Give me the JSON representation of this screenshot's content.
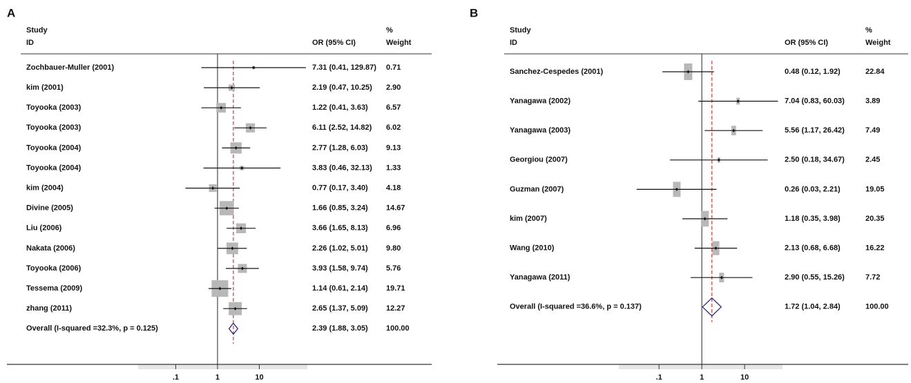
{
  "chart_data": [
    {
      "type": "forest",
      "panel_label": "A",
      "headers": {
        "study": "Study",
        "id": "ID",
        "or": "OR (95% CI)",
        "pct": "%",
        "weight": "Weight"
      },
      "categories": [
        "Zochbauer-Muller (2001)",
        "kim (2001)",
        "Toyooka (2003)",
        "Toyooka (2003)",
        "Toyooka (2004)",
        "Toyooka (2004)",
        "kim (2004)",
        "Divine (2005)",
        "Liu (2006)",
        "Nakata (2006)",
        "Toyooka (2006)",
        "Tessema (2009)",
        "zhang (2011)"
      ],
      "values": [
        7.31,
        2.19,
        1.22,
        6.11,
        2.77,
        3.83,
        0.77,
        1.66,
        3.66,
        2.26,
        3.93,
        1.14,
        2.65
      ],
      "lower": [
        0.41,
        0.47,
        0.41,
        2.52,
        1.28,
        0.46,
        0.17,
        0.85,
        1.65,
        1.02,
        1.58,
        0.61,
        1.37
      ],
      "upper": [
        129.87,
        10.25,
        3.63,
        14.82,
        6.03,
        32.13,
        3.4,
        3.24,
        8.13,
        5.01,
        9.74,
        2.14,
        5.09
      ],
      "value_labels": [
        "7.31 (0.41, 129.87)",
        "2.19 (0.47, 10.25)",
        "1.22 (0.41, 3.63)",
        "6.11 (2.52, 14.82)",
        "2.77 (1.28, 6.03)",
        "3.83 (0.46, 32.13)",
        "0.77 (0.17, 3.40)",
        "1.66 (0.85, 3.24)",
        "3.66 (1.65, 8.13)",
        "2.26 (1.02, 5.01)",
        "3.93 (1.58, 9.74)",
        "1.14 (0.61, 2.14)",
        "2.65 (1.37, 5.09)"
      ],
      "weights": [
        0.71,
        2.9,
        6.57,
        6.02,
        9.13,
        1.33,
        4.18,
        14.67,
        6.96,
        9.8,
        5.76,
        19.71,
        12.27
      ],
      "weight_labels": [
        "0.71",
        "2.90",
        "6.57",
        "6.02",
        "9.13",
        "1.33",
        "4.18",
        "14.67",
        "6.96",
        "9.80",
        "5.76",
        "19.71",
        "12.27"
      ],
      "overall": {
        "label": "Overall (I-squared =32.3%, p = 0.125)",
        "value": 2.39,
        "lower": 1.88,
        "upper": 3.05,
        "value_label": "2.39 (1.88, 3.05)",
        "weight": 100,
        "weight_label": "100.00"
      },
      "xlim": [
        0.0126,
        141
      ],
      "log_scale": true,
      "null_line": 1,
      "xticks": [
        {
          "value": 0.1,
          "label": ".1"
        },
        1,
        10
      ],
      "box_color": "#b8b8b8",
      "diamond_color": "#2b2b80",
      "overall_line_color": "#c0504d"
    },
    {
      "type": "forest",
      "panel_label": "B",
      "headers": {
        "study": "Study",
        "id": "ID",
        "or": "OR (95% CI)",
        "pct": "%",
        "weight": "Weight"
      },
      "categories": [
        "Sanchez-Cespedes (2001)",
        "Yanagawa (2002)",
        "Yanagawa (2003)",
        "Georgiou (2007)",
        "Guzman (2007)",
        "kim (2007)",
        "Wang (2010)",
        "Yanagawa (2011)"
      ],
      "values": [
        0.48,
        7.04,
        5.56,
        2.5,
        0.26,
        1.18,
        2.13,
        2.9
      ],
      "lower": [
        0.12,
        0.83,
        1.17,
        0.18,
        0.03,
        0.35,
        0.68,
        0.55
      ],
      "upper": [
        1.92,
        60.03,
        26.42,
        34.67,
        2.21,
        3.98,
        6.68,
        15.26
      ],
      "value_labels": [
        "0.48 (0.12, 1.92)",
        "7.04 (0.83, 60.03)",
        "5.56 (1.17, 26.42)",
        "2.50 (0.18, 34.67)",
        "0.26 (0.03, 2.21)",
        "1.18 (0.35, 3.98)",
        "2.13 (0.68, 6.68)",
        "2.90 (0.55, 15.26)"
      ],
      "weights": [
        22.84,
        3.89,
        7.49,
        2.45,
        19.05,
        20.35,
        16.22,
        7.72
      ],
      "weight_labels": [
        "22.84",
        "3.89",
        "7.49",
        "2.45",
        "19.05",
        "20.35",
        "16.22",
        "7.72"
      ],
      "overall": {
        "label": "Overall (I-squared =36.6%, p = 0.137)",
        "value": 1.72,
        "lower": 1.04,
        "upper": 2.84,
        "value_label": "1.72 (1.04, 2.84)",
        "weight": 100,
        "weight_label": "100.00"
      },
      "xlim": [
        0.0115,
        77
      ],
      "log_scale": true,
      "null_line": 1,
      "xticks": [
        {
          "value": 0.1,
          "label": ".1"
        },
        1,
        10
      ],
      "box_color": "#b8b8b8",
      "diamond_color": "#2b2b80",
      "overall_line_color": "#c0504d"
    }
  ]
}
